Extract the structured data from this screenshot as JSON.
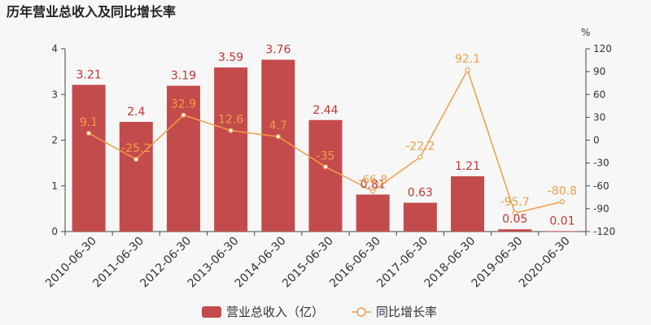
{
  "title": "历年营业总收入及同比增长率",
  "right_axis_unit": "%",
  "legend": {
    "bar": "营业总收入（亿）",
    "line": "同比增长率"
  },
  "colors": {
    "bar": "#c44b4b",
    "bar_label": "#c23531",
    "line": "#f19d4a",
    "axis": "#444444"
  },
  "chart_data": {
    "type": "bar",
    "title": "历年营业总收入及同比增长率",
    "categories": [
      "2010-06-30",
      "2011-06-30",
      "2012-06-30",
      "2013-06-30",
      "2014-06-30",
      "2015-06-30",
      "2016-06-30",
      "2017-06-30",
      "2018-06-30",
      "2019-06-30",
      "2020-06-30"
    ],
    "series": [
      {
        "name": "营业总收入（亿）",
        "type": "bar",
        "axis": "left",
        "values": [
          3.21,
          2.4,
          3.19,
          3.59,
          3.76,
          2.44,
          0.81,
          0.63,
          1.21,
          0.05,
          0.01
        ],
        "labels": [
          "3.21",
          "2.4",
          "3.19",
          "3.59",
          "3.76",
          "2.44",
          "0.81",
          "0.63",
          "1.21",
          "0.05",
          "0.01"
        ]
      },
      {
        "name": "同比增长率",
        "type": "line",
        "axis": "right",
        "values": [
          9.1,
          -25.2,
          32.9,
          12.6,
          4.7,
          -35,
          -66.8,
          -22.2,
          92.1,
          -95.7,
          -80.8
        ],
        "labels": [
          "9.1",
          "-25.2",
          "32.9",
          "12.6",
          "4.7",
          "-35",
          "-66.8",
          "-22.2",
          "92.1",
          "-95.7",
          "-80.8"
        ]
      }
    ],
    "left_axis": {
      "ylim": [
        0,
        4
      ],
      "ticks": [
        "0",
        "1",
        "2",
        "3",
        "4"
      ]
    },
    "right_axis": {
      "ylim": [
        -120,
        120
      ],
      "ticks": [
        "120",
        "90",
        "60",
        "30",
        "0",
        "-30",
        "-60",
        "-90",
        "-120"
      ]
    },
    "legend_position": "bottom-center",
    "grid": false
  }
}
